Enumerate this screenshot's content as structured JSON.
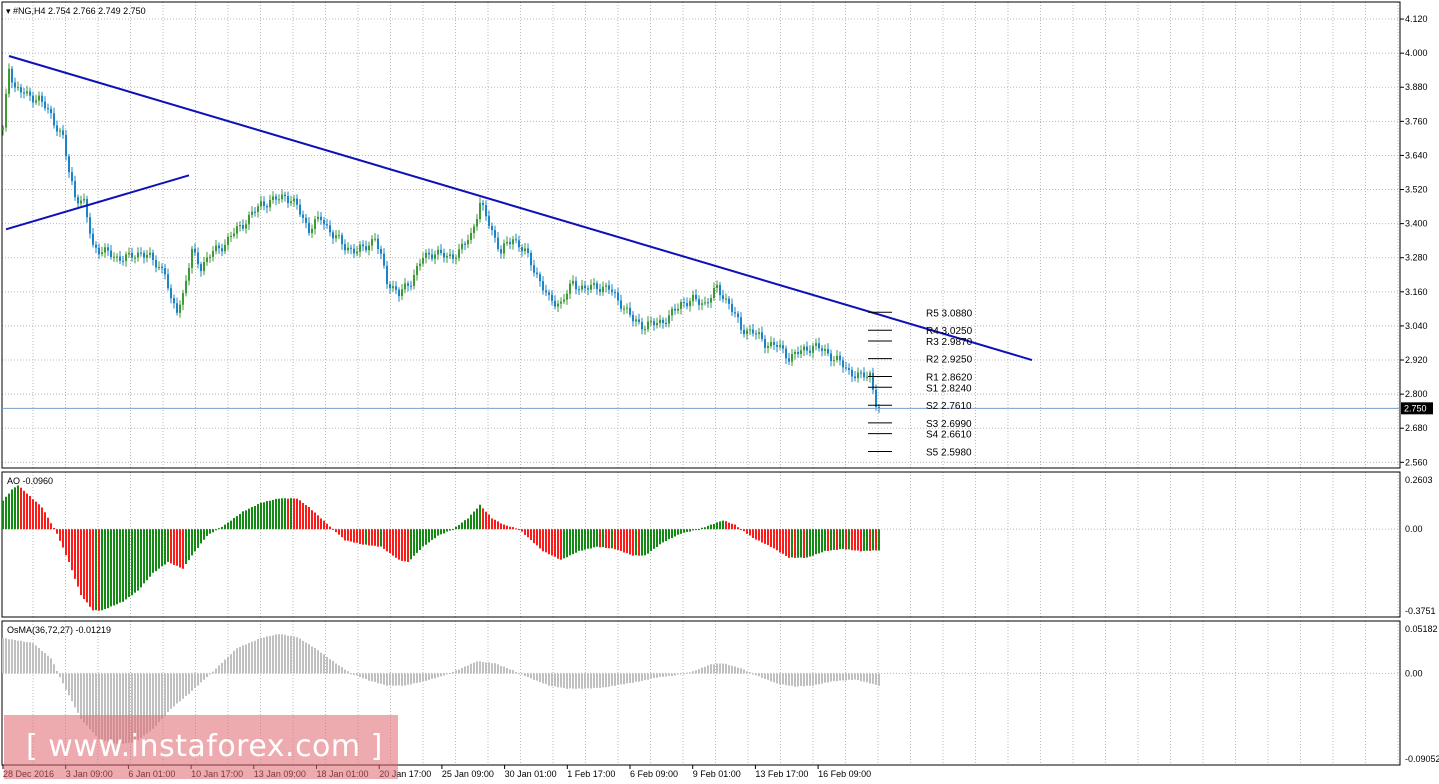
{
  "title": "#NG,H4",
  "ohlc": "2.754 2.766 2.749 2.750",
  "current_price": "2.750",
  "watermark": "[ www.instaforex.com ]",
  "colors": {
    "bull": "#3d9a34",
    "bear": "#1b84c6",
    "trend": "#1010b8",
    "grid": "#b8b8b8",
    "ao_up": "#138a13",
    "ao_down": "#ff1a1a",
    "osma": "#c0c0c0",
    "price_line": "#7a9ec8"
  },
  "x_labels": [
    "28 Dec 2016",
    "3 Jan 09:00",
    "6 Jan 01:00",
    "10 Jan 17:00",
    "13 Jan 09:00",
    "18 Jan 01:00",
    "20 Jan 17:00",
    "25 Jan 09:00",
    "30 Jan 01:00",
    "1 Feb 17:00",
    "6 Feb 09:00",
    "9 Feb 01:00",
    "13 Feb 17:00",
    "16 Feb 09:00"
  ],
  "chart_data": [
    {
      "type": "candlestick",
      "title": "#NG,H4",
      "ylim": [
        2.54,
        4.18
      ],
      "yticks": [
        "4.120",
        "4.000",
        "3.880",
        "3.760",
        "3.640",
        "3.520",
        "3.400",
        "3.280",
        "3.160",
        "3.040",
        "2.920",
        "2.800",
        "2.680",
        "2.560"
      ],
      "close_path": [
        [
          0,
          3.73
        ],
        [
          2,
          3.95
        ],
        [
          4,
          3.88
        ],
        [
          8,
          3.85
        ],
        [
          12,
          3.84
        ],
        [
          16,
          3.78
        ],
        [
          20,
          3.7
        ],
        [
          22,
          3.58
        ],
        [
          24,
          3.5
        ],
        [
          27,
          3.47
        ],
        [
          30,
          3.32
        ],
        [
          34,
          3.3
        ],
        [
          38,
          3.28
        ],
        [
          42,
          3.28
        ],
        [
          46,
          3.3
        ],
        [
          50,
          3.27
        ],
        [
          54,
          3.23
        ],
        [
          56,
          3.12
        ],
        [
          58,
          3.1
        ],
        [
          60,
          3.15
        ],
        [
          63,
          3.3
        ],
        [
          66,
          3.25
        ],
        [
          70,
          3.3
        ],
        [
          74,
          3.33
        ],
        [
          78,
          3.38
        ],
        [
          82,
          3.42
        ],
        [
          86,
          3.47
        ],
        [
          90,
          3.48
        ],
        [
          94,
          3.5
        ],
        [
          98,
          3.46
        ],
        [
          102,
          3.38
        ],
        [
          106,
          3.42
        ],
        [
          110,
          3.36
        ],
        [
          114,
          3.32
        ],
        [
          118,
          3.3
        ],
        [
          122,
          3.33
        ],
        [
          124,
          3.35
        ],
        [
          126,
          3.28
        ],
        [
          128,
          3.2
        ],
        [
          132,
          3.15
        ],
        [
          136,
          3.2
        ],
        [
          140,
          3.28
        ],
        [
          144,
          3.3
        ],
        [
          148,
          3.28
        ],
        [
          152,
          3.3
        ],
        [
          156,
          3.36
        ],
        [
          159,
          3.47
        ],
        [
          162,
          3.4
        ],
        [
          166,
          3.3
        ],
        [
          170,
          3.35
        ],
        [
          174,
          3.3
        ],
        [
          178,
          3.22
        ],
        [
          182,
          3.13
        ],
        [
          186,
          3.12
        ],
        [
          190,
          3.19
        ],
        [
          194,
          3.17
        ],
        [
          198,
          3.18
        ],
        [
          202,
          3.17
        ],
        [
          206,
          3.12
        ],
        [
          210,
          3.06
        ],
        [
          214,
          3.04
        ],
        [
          218,
          3.05
        ],
        [
          222,
          3.07
        ],
        [
          226,
          3.12
        ],
        [
          230,
          3.13
        ],
        [
          234,
          3.12
        ],
        [
          238,
          3.17
        ],
        [
          242,
          3.12
        ],
        [
          246,
          3.03
        ],
        [
          250,
          3.02
        ],
        [
          254,
          2.98
        ],
        [
          258,
          2.97
        ],
        [
          262,
          2.93
        ],
        [
          266,
          2.95
        ],
        [
          270,
          2.97
        ],
        [
          274,
          2.95
        ],
        [
          278,
          2.92
        ],
        [
          282,
          2.88
        ],
        [
          286,
          2.86
        ],
        [
          289,
          2.87
        ],
        [
          291,
          2.77
        ],
        [
          292,
          2.75
        ]
      ],
      "trendlines": [
        {
          "from": {
            "bar": 2,
            "price": 3.99
          },
          "to": {
            "bar": 343,
            "price": 2.92
          }
        },
        {
          "from": {
            "bar": 1,
            "price": 3.38
          },
          "to": {
            "bar": 62,
            "price": 3.57
          }
        }
      ],
      "pivot_levels": [
        {
          "label": "R5 3.0880",
          "value": 3.088
        },
        {
          "label": "R4 3.0250",
          "value": 3.025
        },
        {
          "label": "R3 2.9870",
          "value": 2.987
        },
        {
          "label": "R2 2.9250",
          "value": 2.925
        },
        {
          "label": "R1 2.8620",
          "value": 2.862
        },
        {
          "label": "S1 2.8240",
          "value": 2.824
        },
        {
          "label": "S2 2.7610",
          "value": 2.761
        },
        {
          "label": "S3 2.6990",
          "value": 2.699
        },
        {
          "label": "S4 2.6610",
          "value": 2.661
        },
        {
          "label": "S5 2.5980",
          "value": 2.598
        }
      ]
    },
    {
      "type": "bar",
      "name": "AO",
      "label": "AO -0.0960",
      "ylim": [
        -0.4,
        0.2603
      ],
      "yticks": [
        "0.2603",
        "0.00",
        "-0.3751"
      ],
      "path": [
        [
          0,
          0.13
        ],
        [
          3,
          0.18
        ],
        [
          5,
          0.2
        ],
        [
          9,
          0.15
        ],
        [
          13,
          0.1
        ],
        [
          18,
          -0.02
        ],
        [
          22,
          -0.15
        ],
        [
          26,
          -0.3
        ],
        [
          30,
          -0.37
        ],
        [
          33,
          -0.37
        ],
        [
          40,
          -0.33
        ],
        [
          45,
          -0.28
        ],
        [
          50,
          -0.2
        ],
        [
          55,
          -0.15
        ],
        [
          60,
          -0.18
        ],
        [
          63,
          -0.12
        ],
        [
          68,
          -0.03
        ],
        [
          74,
          0.02
        ],
        [
          80,
          0.08
        ],
        [
          86,
          0.12
        ],
        [
          92,
          0.14
        ],
        [
          98,
          0.14
        ],
        [
          102,
          0.1
        ],
        [
          106,
          0.05
        ],
        [
          110,
          0
        ],
        [
          114,
          -0.05
        ],
        [
          120,
          -0.07
        ],
        [
          126,
          -0.08
        ],
        [
          132,
          -0.14
        ],
        [
          135,
          -0.15
        ],
        [
          140,
          -0.08
        ],
        [
          145,
          -0.03
        ],
        [
          150,
          0
        ],
        [
          155,
          0.05
        ],
        [
          159,
          0.11
        ],
        [
          163,
          0.05
        ],
        [
          167,
          0.02
        ],
        [
          172,
          0
        ],
        [
          180,
          -0.1
        ],
        [
          186,
          -0.14
        ],
        [
          192,
          -0.1
        ],
        [
          198,
          -0.08
        ],
        [
          204,
          -0.09
        ],
        [
          210,
          -0.12
        ],
        [
          214,
          -0.12
        ],
        [
          220,
          -0.06
        ],
        [
          226,
          -0.02
        ],
        [
          232,
          0
        ],
        [
          240,
          0.04
        ],
        [
          244,
          0.02
        ],
        [
          250,
          -0.04
        ],
        [
          256,
          -0.08
        ],
        [
          262,
          -0.13
        ],
        [
          268,
          -0.13
        ],
        [
          274,
          -0.1
        ],
        [
          280,
          -0.09
        ],
        [
          286,
          -0.1
        ],
        [
          292,
          -0.096
        ]
      ]
    },
    {
      "type": "bar",
      "name": "OsMA(36,72,27)",
      "label": "OsMA(36,72,27) -0.01219",
      "ylim": [
        -0.0905,
        0.0518
      ],
      "yticks": [
        "0.05182",
        "0.00",
        "-0.09052"
      ],
      "path": [
        [
          0,
          0.035
        ],
        [
          10,
          0.03
        ],
        [
          16,
          0.015
        ],
        [
          20,
          -0.01
        ],
        [
          26,
          -0.045
        ],
        [
          32,
          -0.065
        ],
        [
          38,
          -0.07
        ],
        [
          44,
          -0.068
        ],
        [
          50,
          -0.055
        ],
        [
          56,
          -0.035
        ],
        [
          62,
          -0.02
        ],
        [
          70,
          0.002
        ],
        [
          78,
          0.025
        ],
        [
          86,
          0.035
        ],
        [
          92,
          0.039
        ],
        [
          98,
          0.036
        ],
        [
          104,
          0.025
        ],
        [
          110,
          0.012
        ],
        [
          116,
          0
        ],
        [
          122,
          -0.007
        ],
        [
          128,
          -0.012
        ],
        [
          134,
          -0.012
        ],
        [
          140,
          -0.008
        ],
        [
          146,
          -0.003
        ],
        [
          152,
          0.004
        ],
        [
          158,
          0.012
        ],
        [
          164,
          0.01
        ],
        [
          170,
          0.003
        ],
        [
          176,
          -0.005
        ],
        [
          182,
          -0.012
        ],
        [
          188,
          -0.015
        ],
        [
          194,
          -0.015
        ],
        [
          200,
          -0.014
        ],
        [
          206,
          -0.011
        ],
        [
          212,
          -0.008
        ],
        [
          218,
          -0.004
        ],
        [
          224,
          -0.002
        ],
        [
          230,
          0.002
        ],
        [
          236,
          0.009
        ],
        [
          240,
          0.01
        ],
        [
          246,
          0.005
        ],
        [
          252,
          -0.003
        ],
        [
          258,
          -0.01
        ],
        [
          264,
          -0.013
        ],
        [
          270,
          -0.012
        ],
        [
          276,
          -0.008
        ],
        [
          284,
          -0.006
        ],
        [
          292,
          -0.012
        ]
      ]
    }
  ]
}
